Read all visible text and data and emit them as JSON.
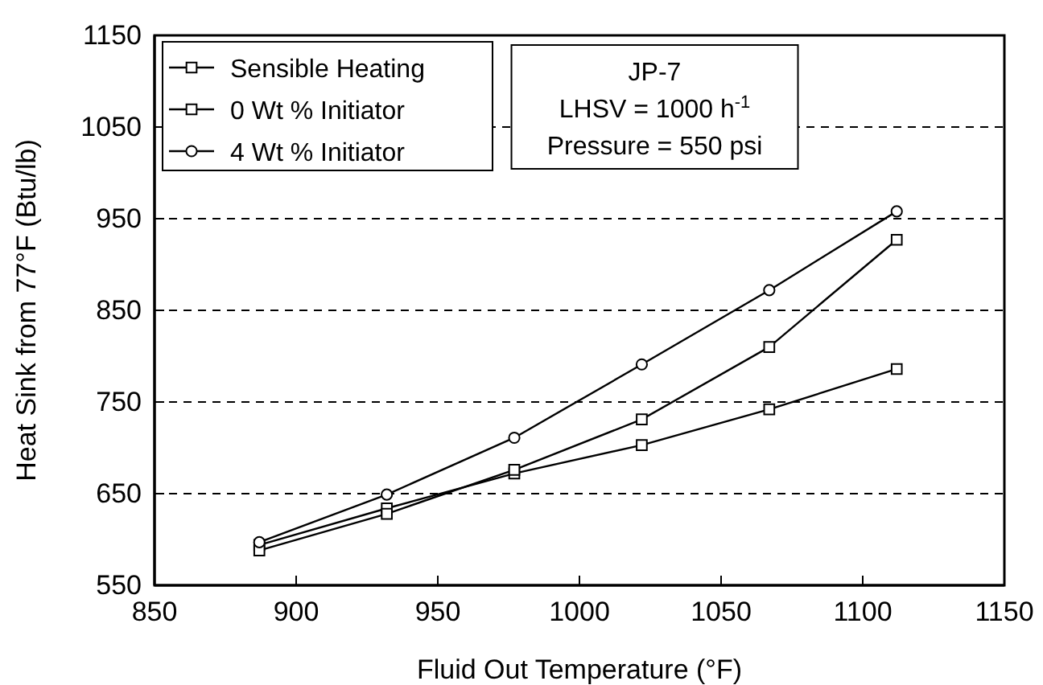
{
  "chart_data": {
    "type": "line",
    "xlabel": "Fluid Out Temperature (°F)",
    "ylabel": "Heat Sink from 77°F (Btu/lb)",
    "x": [
      887,
      932,
      977,
      1022,
      1067,
      1112
    ],
    "series": [
      {
        "name": "Sensible Heating",
        "color": "#000000",
        "marker": "square",
        "values": [
          594,
          634,
          672,
          703,
          742,
          786
        ]
      },
      {
        "name": "0 Wt % Initiator",
        "color": "#000000",
        "marker": "square",
        "values": [
          588,
          628,
          676,
          731,
          810,
          927
        ]
      },
      {
        "name": "4 Wt % Initiator",
        "color": "#000000",
        "marker": "circle",
        "values": [
          597,
          649,
          711,
          791,
          872,
          958
        ]
      }
    ],
    "xlim": [
      850,
      1150
    ],
    "xticks": [
      850,
      900,
      950,
      1000,
      1050,
      1100,
      1150
    ],
    "ylim": [
      550,
      1150
    ],
    "yticks": [
      550,
      650,
      750,
      850,
      950,
      1050,
      1150
    ],
    "grid": "y",
    "legend": "top left",
    "line_style": "solid",
    "annotations": [
      "JP-7",
      "LHSV = 1000 h$^{-1}$",
      "Pressure = 550 psi"
    ]
  }
}
